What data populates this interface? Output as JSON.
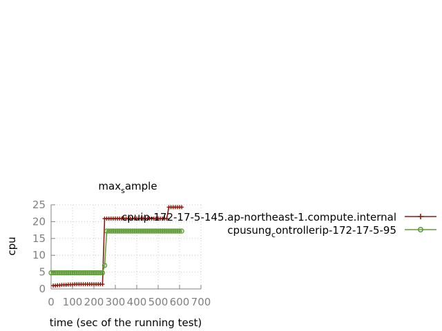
{
  "chart_data": {
    "type": "line",
    "title": {
      "main": "max",
      "sub": "s",
      "rest": "ample"
    },
    "xlabel": "time (sec of the running test)",
    "ylabel": "cpu",
    "xlim": [
      0,
      700
    ],
    "ylim": [
      0,
      25
    ],
    "xticks": [
      "0",
      "100",
      "200",
      "300",
      "400",
      "500",
      "600",
      "700"
    ],
    "yticks": [
      "0",
      "5",
      "10",
      "15",
      "20",
      "25"
    ],
    "grid": true,
    "legend_position": "right",
    "series": [
      {
        "name": "cpuip-172-17-5-145.ap-northeast-1.compute.internal",
        "color": "#8b1a0e",
        "marker": "plus",
        "x": [
          10,
          20,
          30,
          40,
          50,
          60,
          70,
          80,
          90,
          100,
          110,
          120,
          130,
          140,
          150,
          160,
          170,
          180,
          190,
          200,
          210,
          220,
          230,
          240,
          250,
          260,
          270,
          280,
          290,
          300,
          310,
          320,
          330,
          340,
          350,
          360,
          370,
          380,
          390,
          400,
          410,
          420,
          430,
          440,
          450,
          460,
          470,
          480,
          490,
          500,
          510,
          520,
          530,
          540,
          550,
          560,
          570,
          580,
          590,
          600,
          610
        ],
        "y": [
          1.0,
          1.0,
          1.1,
          1.1,
          1.2,
          1.2,
          1.2,
          1.3,
          1.3,
          1.3,
          1.4,
          1.4,
          1.4,
          1.4,
          1.4,
          1.4,
          1.4,
          1.4,
          1.4,
          1.4,
          1.4,
          1.4,
          1.4,
          1.4,
          20.9,
          20.9,
          20.9,
          20.9,
          20.9,
          20.9,
          20.9,
          20.9,
          20.9,
          20.9,
          20.9,
          20.9,
          20.9,
          20.9,
          20.9,
          20.9,
          20.9,
          20.9,
          20.9,
          20.9,
          20.9,
          20.9,
          20.9,
          20.9,
          20.9,
          20.9,
          20.9,
          20.9,
          20.9,
          20.9,
          24.3,
          24.3,
          24.3,
          24.3,
          24.3,
          24.3,
          24.3
        ]
      },
      {
        "name": "cpusung_controllerip-172-17-5-95",
        "name_parts": {
          "a": "cpusung",
          "sub": "c",
          "b": "ontrollerip-172-17-5-95"
        },
        "color": "#5e9c36",
        "marker": "circle",
        "x": [
          0,
          10,
          20,
          30,
          40,
          50,
          60,
          70,
          80,
          90,
          100,
          110,
          120,
          130,
          140,
          150,
          160,
          170,
          180,
          190,
          200,
          210,
          220,
          230,
          240,
          250,
          260,
          270,
          280,
          290,
          300,
          310,
          320,
          330,
          340,
          350,
          360,
          370,
          380,
          390,
          400,
          410,
          420,
          430,
          440,
          450,
          460,
          470,
          480,
          490,
          500,
          510,
          520,
          530,
          540,
          550,
          560,
          570,
          580,
          590,
          600,
          610
        ],
        "y": [
          4.8,
          4.8,
          4.8,
          4.8,
          4.8,
          4.8,
          4.8,
          4.8,
          4.8,
          4.8,
          4.8,
          4.8,
          4.8,
          4.8,
          4.8,
          4.8,
          4.8,
          4.8,
          4.8,
          4.8,
          4.8,
          4.8,
          4.8,
          4.8,
          4.8,
          7.0,
          17.2,
          17.2,
          17.2,
          17.2,
          17.2,
          17.2,
          17.2,
          17.2,
          17.2,
          17.2,
          17.2,
          17.2,
          17.2,
          17.2,
          17.2,
          17.2,
          17.2,
          17.2,
          17.2,
          17.2,
          17.2,
          17.2,
          17.2,
          17.2,
          17.2,
          17.2,
          17.2,
          17.2,
          17.2,
          17.2,
          17.2,
          17.2,
          17.2,
          17.2,
          17.2,
          17.2
        ]
      }
    ]
  }
}
